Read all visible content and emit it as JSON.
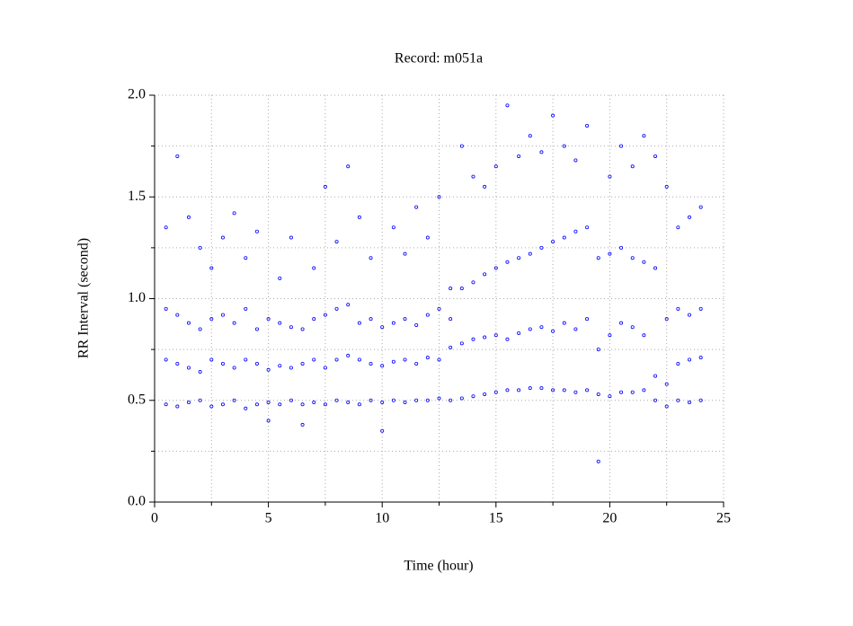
{
  "chart_data": {
    "type": "scatter",
    "title": "Record:  m051a",
    "x_label": "Time (hour)",
    "y_label": "RR Interval (second)",
    "color": "#0000ff",
    "grid": true,
    "xlim": [
      0,
      25
    ],
    "xticks": [
      0,
      5,
      10,
      15,
      20,
      25
    ],
    "xminorticks": [
      2.5,
      7.5,
      12.5,
      17.5,
      22.5
    ],
    "ylim": [
      0,
      2
    ],
    "yticks": [
      {
        "value": 0,
        "label": "0.0"
      },
      0.5,
      {
        "value": 1,
        "label": "1.0"
      },
      1.5,
      {
        "value": 2,
        "label": "2.0"
      }
    ],
    "yminorticks": [
      0.25,
      0.75,
      1.25,
      1.75
    ],
    "x": [
      0.5,
      0.5,
      0.5,
      0.5,
      1,
      1,
      1,
      1,
      1.5,
      1.5,
      1.5,
      1.5,
      2,
      2,
      2,
      2,
      2.5,
      2.5,
      2.5,
      2.5,
      3,
      3,
      3,
      3,
      3.5,
      3.5,
      3.5,
      3.5,
      4,
      4,
      4,
      4,
      4.5,
      4.5,
      4.5,
      4.5,
      5,
      5,
      5,
      5,
      5.5,
      5.5,
      5.5,
      5.5,
      6,
      6,
      6,
      6,
      6.5,
      6.5,
      6.5,
      6.5,
      7,
      7,
      7,
      7,
      7.5,
      7.5,
      7.5,
      7.5,
      8,
      8,
      8,
      8,
      8.5,
      8.5,
      8.5,
      8.5,
      9,
      9,
      9,
      9,
      9.5,
      9.5,
      9.5,
      9.5,
      10,
      10,
      10,
      10,
      10.5,
      10.5,
      10.5,
      10.5,
      11,
      11,
      11,
      11,
      11.5,
      11.5,
      11.5,
      11.5,
      12,
      12,
      12,
      12,
      12.5,
      12.5,
      12.5,
      12.5,
      13,
      13,
      13,
      13,
      13.5,
      13.5,
      13.5,
      13.5,
      14,
      14,
      14,
      14,
      14.5,
      14.5,
      14.5,
      14.5,
      15,
      15,
      15,
      15,
      15.5,
      15.5,
      15.5,
      15.5,
      16,
      16,
      16,
      16,
      16.5,
      16.5,
      16.5,
      16.5,
      17,
      17,
      17,
      17,
      17.5,
      17.5,
      17.5,
      17.5,
      18,
      18,
      18,
      18,
      18.5,
      18.5,
      18.5,
      18.5,
      19,
      19,
      19,
      19,
      19.5,
      19.5,
      19.5,
      19.5,
      20,
      20,
      20,
      20,
      20.5,
      20.5,
      20.5,
      20.5,
      21,
      21,
      21,
      21,
      21.5,
      21.5,
      21.5,
      21.5,
      22,
      22,
      22,
      22,
      22.5,
      22.5,
      22.5,
      22.5,
      23,
      23,
      23,
      23,
      23.5,
      23.5,
      23.5,
      23.5,
      24,
      24,
      24,
      24
    ],
    "values": [
      0.48,
      0.7,
      0.95,
      1.35,
      0.47,
      0.68,
      0.92,
      1.7,
      0.49,
      0.66,
      0.88,
      1.4,
      0.5,
      0.64,
      0.85,
      1.25,
      0.47,
      0.7,
      0.9,
      1.15,
      0.48,
      0.68,
      0.92,
      1.3,
      0.5,
      0.66,
      0.88,
      1.42,
      0.46,
      0.7,
      0.95,
      1.2,
      0.48,
      0.68,
      0.85,
      1.33,
      0.49,
      0.65,
      0.9,
      0.4,
      0.48,
      0.67,
      0.88,
      1.1,
      0.5,
      0.66,
      0.86,
      1.3,
      0.48,
      0.68,
      0.85,
      0.38,
      0.49,
      0.7,
      0.9,
      1.15,
      0.48,
      0.66,
      0.92,
      1.55,
      0.5,
      0.7,
      0.95,
      1.28,
      0.49,
      0.72,
      0.97,
      1.65,
      0.48,
      0.7,
      0.88,
      1.4,
      0.5,
      0.68,
      0.9,
      1.2,
      0.49,
      0.67,
      0.86,
      0.35,
      0.5,
      0.69,
      0.88,
      1.35,
      0.49,
      0.7,
      0.9,
      1.22,
      0.5,
      0.68,
      0.87,
      1.45,
      0.5,
      0.71,
      0.92,
      1.3,
      0.51,
      0.7,
      0.95,
      1.5,
      0.5,
      0.76,
      0.9,
      1.05,
      0.51,
      0.78,
      1.05,
      1.75,
      0.52,
      0.8,
      1.08,
      1.6,
      0.53,
      0.81,
      1.12,
      1.55,
      0.54,
      0.82,
      1.15,
      1.65,
      0.55,
      0.8,
      1.18,
      1.95,
      0.55,
      0.83,
      1.2,
      1.7,
      0.56,
      0.85,
      1.22,
      1.8,
      0.56,
      0.86,
      1.25,
      1.72,
      0.55,
      0.84,
      1.28,
      1.9,
      0.55,
      0.88,
      1.3,
      1.75,
      0.54,
      0.85,
      1.33,
      1.68,
      0.55,
      0.9,
      1.35,
      1.85,
      0.53,
      0.75,
      1.2,
      0.2,
      0.52,
      0.82,
      1.22,
      1.6,
      0.54,
      0.88,
      1.25,
      1.75,
      0.54,
      0.86,
      1.2,
      1.65,
      0.55,
      0.82,
      1.18,
      1.8,
      0.5,
      0.62,
      1.15,
      1.7,
      0.47,
      0.58,
      0.9,
      1.55,
      0.5,
      0.68,
      0.95,
      1.35,
      0.49,
      0.7,
      0.92,
      1.4,
      0.5,
      0.71,
      0.95,
      1.45
    ]
  }
}
